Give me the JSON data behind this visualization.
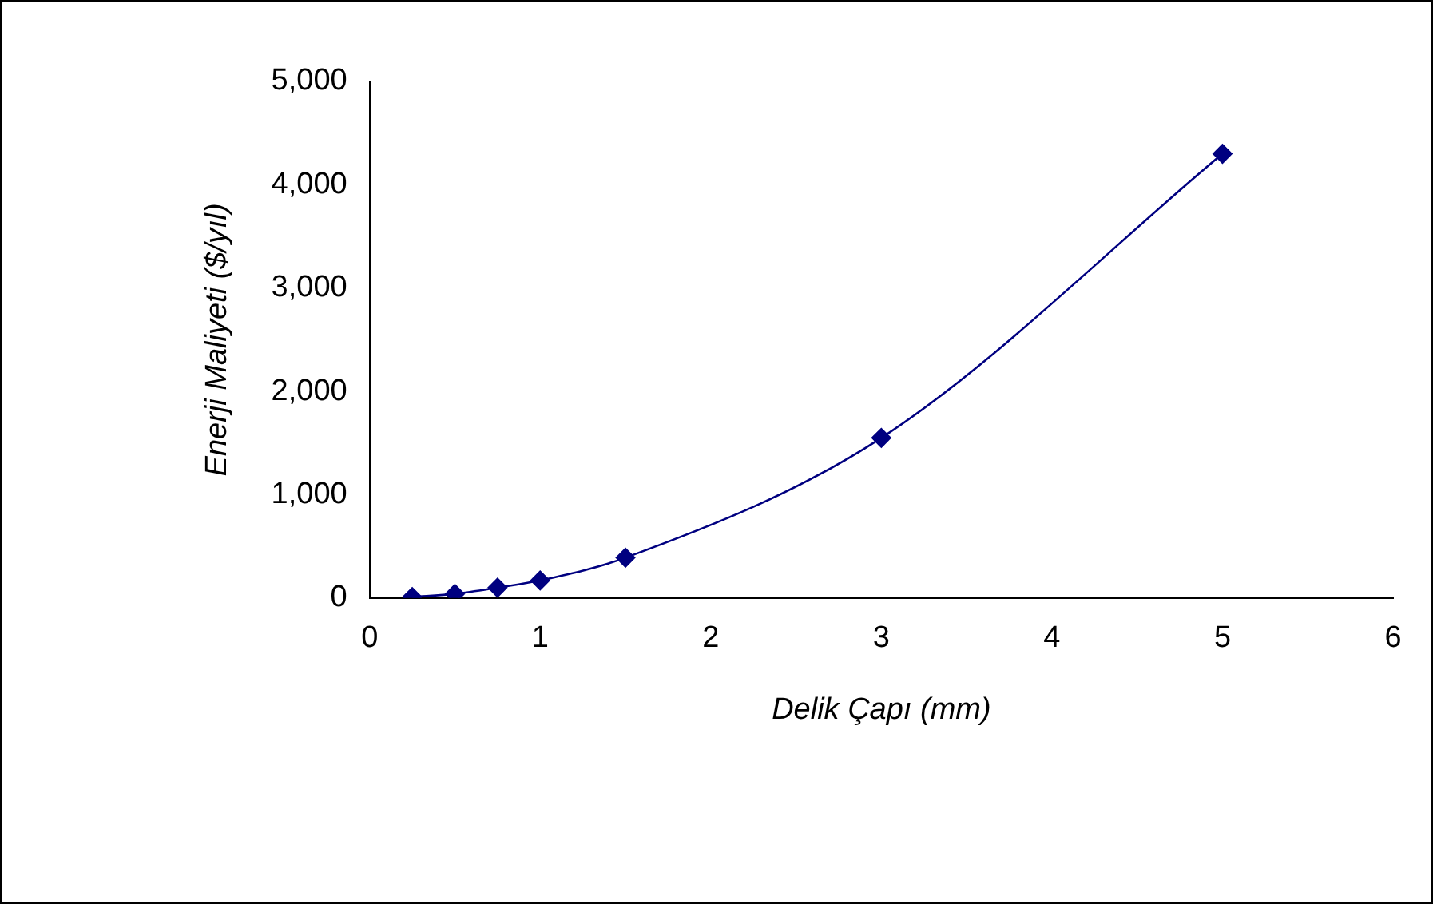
{
  "chart_data": {
    "type": "line",
    "xlabel": "Delik Çapı (mm)",
    "ylabel": "Enerji Maliyeti ($/yıl)",
    "x": [
      0.25,
      0.5,
      0.75,
      1,
      1.5,
      3,
      5
    ],
    "series": [
      {
        "color": "#000080",
        "values": [
          10,
          40,
          100,
          170,
          390,
          1550,
          4300
        ]
      }
    ],
    "xlim": [
      0,
      6
    ],
    "xticks": [
      0,
      1,
      2,
      3,
      4,
      5,
      6
    ],
    "ylim": [
      0,
      5000
    ],
    "yticks": [
      0,
      {
        "value": 1000,
        "label": "1,000"
      },
      {
        "value": 2000,
        "label": "2,000"
      },
      {
        "value": 3000,
        "label": "3,000"
      },
      {
        "value": 4000,
        "label": "4,000"
      },
      {
        "value": 5000,
        "label": "5,000"
      }
    ],
    "grid": false,
    "legend": false,
    "marker": "diamond",
    "line_style": "solid"
  }
}
